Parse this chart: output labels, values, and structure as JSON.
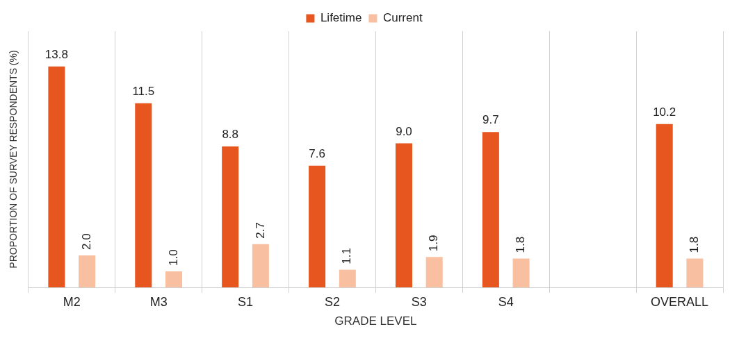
{
  "chart_data": {
    "type": "bar",
    "xlabel": "GRADE LEVEL",
    "ylabel": "PROPORTION OF SURVEY RESPONDENTS (%)",
    "categories": [
      "M2",
      "M3",
      "S1",
      "S2",
      "S3",
      "S4",
      null,
      "OVERALL"
    ],
    "series": [
      {
        "name": "Lifetime",
        "color": "#e8561f",
        "values": [
          13.8,
          11.5,
          8.8,
          7.6,
          9.0,
          9.7,
          null,
          10.2
        ],
        "value_labels": [
          "13.8",
          "11.5",
          "8.8",
          "7.6",
          "9.0",
          "9.7",
          null,
          "10.2"
        ]
      },
      {
        "name": "Current",
        "color": "#f8c0a0",
        "values": [
          2.0,
          1.0,
          2.7,
          1.1,
          1.9,
          1.8,
          null,
          1.8
        ],
        "value_labels": [
          "2.0",
          "1.0",
          "2.7",
          "1.1",
          "1.9",
          "1.8",
          null,
          "1.8"
        ]
      }
    ],
    "grid": "x",
    "legend": "top"
  }
}
